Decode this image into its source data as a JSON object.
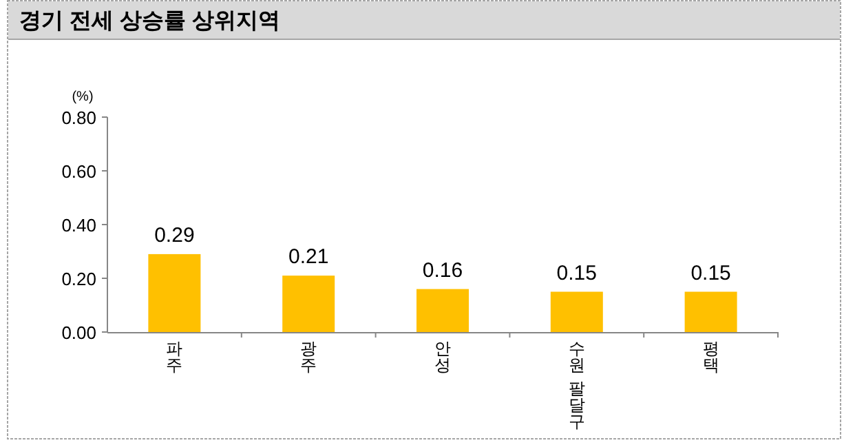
{
  "chart_data": {
    "type": "bar",
    "title": "경기 전세 상승률 상위지역",
    "ylabel": "(%)",
    "categories": [
      "파주",
      "광주",
      "안성",
      "수원 팔달구",
      "평택"
    ],
    "values": [
      0.29,
      0.21,
      0.16,
      0.15,
      0.15
    ],
    "value_labels": [
      "0.29",
      "0.21",
      "0.16",
      "0.15",
      "0.15"
    ],
    "color": "#ffc000",
    "ylim": [
      0,
      0.8
    ],
    "yticks": [
      {
        "value": 0,
        "label": "0.00"
      },
      {
        "value": 0.2,
        "label": "0.20"
      },
      {
        "value": 0.4,
        "label": "0.40"
      },
      {
        "value": 0.6,
        "label": "0.60"
      },
      {
        "value": 0.8,
        "label": "0.80"
      }
    ],
    "grid": false
  }
}
